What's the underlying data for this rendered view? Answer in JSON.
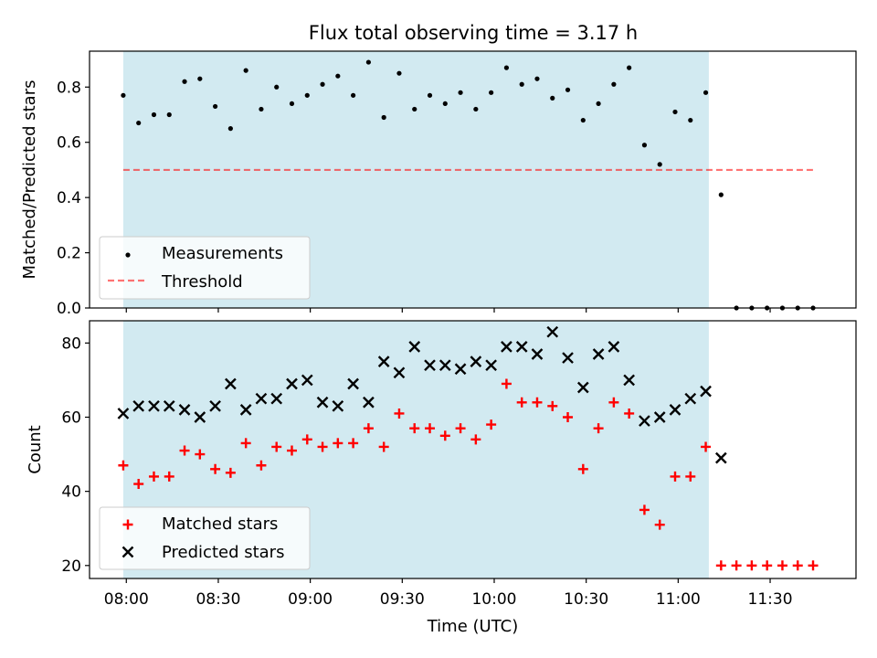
{
  "title": "Flux total observing time = 3.17 h",
  "colors": {
    "observing_span": "#add8e6",
    "measurement": "#000000",
    "threshold": "#ff0000",
    "matched": "#ff0000",
    "predicted": "#000000"
  },
  "chart_data": [
    {
      "type": "scatter",
      "name": "top-panel",
      "ylabel": "Matched/Predicted stars",
      "xlabel": "",
      "ylim": [
        0.0,
        0.93
      ],
      "xlim": [
        "07:48",
        "11:58"
      ],
      "yticks": [
        "0.0",
        "0.2",
        "0.4",
        "0.6",
        "0.8"
      ],
      "ytick_values": [
        0,
        0.2,
        0.4,
        0.6,
        0.8
      ],
      "shaded_span": [
        "07:59",
        "11:10"
      ],
      "threshold": {
        "value": 0.5,
        "x_range": [
          "07:59",
          "11:45"
        ]
      },
      "legend": {
        "placement": "lower-left",
        "entries": [
          "Measurements",
          "Threshold"
        ]
      },
      "series": [
        {
          "name": "Measurements",
          "marker": "dot",
          "x": [
            "07:59",
            "08:04",
            "08:09",
            "08:14",
            "08:19",
            "08:24",
            "08:29",
            "08:34",
            "08:39",
            "08:44",
            "08:49",
            "08:54",
            "08:59",
            "09:04",
            "09:09",
            "09:14",
            "09:19",
            "09:24",
            "09:29",
            "09:34",
            "09:39",
            "09:44",
            "09:49",
            "09:54",
            "09:59",
            "10:04",
            "10:09",
            "10:14",
            "10:19",
            "10:24",
            "10:29",
            "10:34",
            "10:39",
            "10:44",
            "10:49",
            "10:54",
            "10:59",
            "11:04",
            "11:09",
            "11:14",
            "11:19",
            "11:24",
            "11:29",
            "11:34",
            "11:39",
            "11:44"
          ],
          "y": [
            0.77,
            0.67,
            0.7,
            0.7,
            0.82,
            0.83,
            0.73,
            0.65,
            0.86,
            0.72,
            0.8,
            0.74,
            0.77,
            0.81,
            0.84,
            0.77,
            0.89,
            0.69,
            0.85,
            0.72,
            0.77,
            0.74,
            0.78,
            0.72,
            0.78,
            0.87,
            0.81,
            0.83,
            0.76,
            0.79,
            0.68,
            0.74,
            0.81,
            0.87,
            0.59,
            0.52,
            0.71,
            0.68,
            0.78,
            0.41,
            0.0,
            0.0,
            0.0,
            0.0,
            0.0,
            0.0
          ]
        }
      ]
    },
    {
      "type": "scatter",
      "name": "bottom-panel",
      "ylabel": "Count",
      "xlabel": "Time (UTC)",
      "ylim": [
        16.5,
        86
      ],
      "xlim": [
        "07:48",
        "11:58"
      ],
      "yticks": [
        "20",
        "40",
        "60",
        "80"
      ],
      "ytick_values": [
        20,
        40,
        60,
        80
      ],
      "xticks": [
        "08:00",
        "08:30",
        "09:00",
        "09:30",
        "10:00",
        "10:30",
        "11:00",
        "11:30"
      ],
      "shaded_span": [
        "07:59",
        "11:10"
      ],
      "legend": {
        "placement": "lower-left",
        "entries": [
          "Matched stars",
          "Predicted stars"
        ]
      },
      "series": [
        {
          "name": "Matched stars",
          "marker": "plus",
          "x": [
            "07:59",
            "08:04",
            "08:09",
            "08:14",
            "08:19",
            "08:24",
            "08:29",
            "08:34",
            "08:39",
            "08:44",
            "08:49",
            "08:54",
            "08:59",
            "09:04",
            "09:09",
            "09:14",
            "09:19",
            "09:24",
            "09:29",
            "09:34",
            "09:39",
            "09:44",
            "09:49",
            "09:54",
            "09:59",
            "10:04",
            "10:09",
            "10:14",
            "10:19",
            "10:24",
            "10:29",
            "10:34",
            "10:39",
            "10:44",
            "10:49",
            "10:54",
            "10:59",
            "11:04",
            "11:09",
            "11:14",
            "11:19",
            "11:24",
            "11:29",
            "11:34",
            "11:39",
            "11:44"
          ],
          "y": [
            47,
            42,
            44,
            44,
            51,
            50,
            46,
            45,
            53,
            47,
            52,
            51,
            54,
            52,
            53,
            53,
            57,
            52,
            61,
            57,
            57,
            55,
            57,
            54,
            58,
            69,
            64,
            64,
            63,
            60,
            46,
            57,
            64,
            61,
            35,
            31,
            44,
            44,
            52,
            20,
            20,
            20,
            20,
            20,
            20,
            20
          ]
        },
        {
          "name": "Predicted stars",
          "marker": "x",
          "x": [
            "07:59",
            "08:04",
            "08:09",
            "08:14",
            "08:19",
            "08:24",
            "08:29",
            "08:34",
            "08:39",
            "08:44",
            "08:49",
            "08:54",
            "08:59",
            "09:04",
            "09:09",
            "09:14",
            "09:19",
            "09:24",
            "09:29",
            "09:34",
            "09:39",
            "09:44",
            "09:49",
            "09:54",
            "09:59",
            "10:04",
            "10:09",
            "10:14",
            "10:19",
            "10:24",
            "10:29",
            "10:34",
            "10:39",
            "10:44",
            "10:49",
            "10:54",
            "10:59",
            "11:04",
            "11:09",
            "11:14"
          ],
          "y": [
            61,
            63,
            63,
            63,
            62,
            60,
            63,
            69,
            62,
            65,
            65,
            69,
            70,
            64,
            63,
            69,
            64,
            75,
            72,
            79,
            74,
            74,
            73,
            75,
            74,
            79,
            79,
            77,
            83,
            76,
            68,
            77,
            79,
            70,
            59,
            60,
            62,
            65,
            67,
            49
          ]
        }
      ]
    }
  ]
}
